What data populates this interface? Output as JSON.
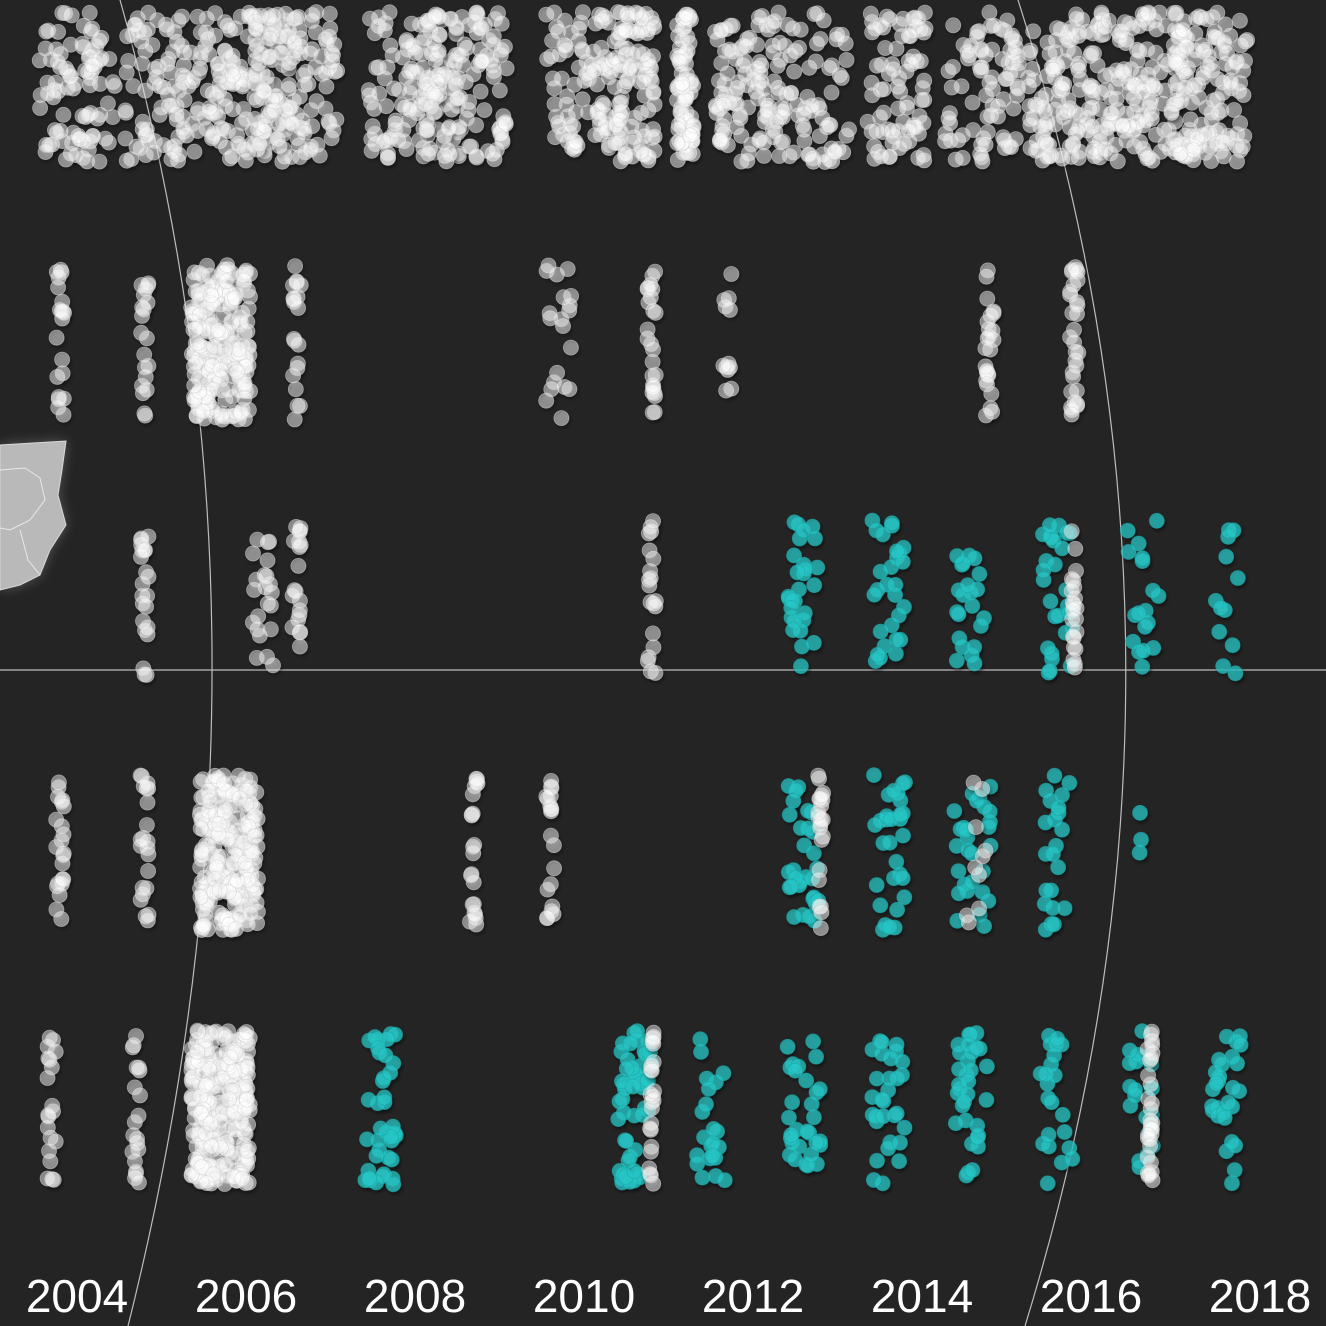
{
  "chart_data": {
    "type": "scatter",
    "subtype": "strip / beeswarm plot of points per year, by row",
    "title": "",
    "xlabel": "",
    "ylabel": "",
    "xlim": [
      2003.5,
      2018.5
    ],
    "x_ticks": [
      "2004",
      "2006",
      "2008",
      "2010",
      "2012",
      "2014",
      "2016",
      "2018"
    ],
    "grid": false,
    "legend": "none",
    "background": "#242424",
    "series_colors": {
      "grey": "#ffffff",
      "teal": "#26c6c6"
    },
    "rows": [
      {
        "row": 1,
        "strips": [
          {
            "x": 2004.0,
            "color": "grey",
            "n": 90,
            "spread": 0.45
          },
          {
            "x": 2005.0,
            "color": "grey",
            "n": 90,
            "spread": 0.45
          },
          {
            "x": 2006.0,
            "color": "grey",
            "n": 150,
            "spread": 0.55
          },
          {
            "x": 2006.6,
            "color": "grey",
            "n": 110,
            "spread": 0.5
          },
          {
            "x": 2008.0,
            "color": "grey",
            "n": 120,
            "spread": 0.55
          },
          {
            "x": 2008.6,
            "color": "grey",
            "n": 110,
            "spread": 0.5
          },
          {
            "x": 2010.0,
            "color": "grey",
            "n": 100,
            "spread": 0.45
          },
          {
            "x": 2010.6,
            "color": "grey",
            "n": 90,
            "spread": 0.25
          },
          {
            "x": 2011.2,
            "color": "grey",
            "n": 80,
            "spread": 0.1
          },
          {
            "x": 2011.9,
            "color": "grey",
            "n": 90,
            "spread": 0.35
          },
          {
            "x": 2012.7,
            "color": "grey",
            "n": 80,
            "spread": 0.45
          },
          {
            "x": 2013.7,
            "color": "grey",
            "n": 80,
            "spread": 0.35
          },
          {
            "x": 2014.7,
            "color": "grey",
            "n": 80,
            "spread": 0.45
          },
          {
            "x": 2015.7,
            "color": "grey",
            "n": 130,
            "spread": 0.45
          },
          {
            "x": 2016.6,
            "color": "grey",
            "n": 120,
            "spread": 0.45
          },
          {
            "x": 2017.4,
            "color": "grey",
            "n": 140,
            "spread": 0.45
          }
        ]
      },
      {
        "row": 2,
        "strips": [
          {
            "x": 2003.8,
            "color": "grey",
            "n": 20,
            "spread": 0.05
          },
          {
            "x": 2004.8,
            "color": "grey",
            "n": 20,
            "spread": 0.05
          },
          {
            "x": 2005.7,
            "color": "grey",
            "n": 220,
            "spread": 0.35
          },
          {
            "x": 2006.6,
            "color": "grey",
            "n": 20,
            "spread": 0.05
          },
          {
            "x": 2009.7,
            "color": "grey",
            "n": 20,
            "spread": 0.15
          },
          {
            "x": 2010.8,
            "color": "grey",
            "n": 25,
            "spread": 0.05
          },
          {
            "x": 2011.7,
            "color": "grey",
            "n": 12,
            "spread": 0.05
          },
          {
            "x": 2014.8,
            "color": "grey",
            "n": 25,
            "spread": 0.05
          },
          {
            "x": 2015.8,
            "color": "grey",
            "n": 30,
            "spread": 0.05
          }
        ]
      },
      {
        "row": 3,
        "strips": [
          {
            "x": 2004.8,
            "color": "grey",
            "n": 22,
            "spread": 0.05
          },
          {
            "x": 2006.2,
            "color": "grey",
            "n": 22,
            "spread": 0.12
          },
          {
            "x": 2006.6,
            "color": "grey",
            "n": 20,
            "spread": 0.05
          },
          {
            "x": 2010.8,
            "color": "grey",
            "n": 20,
            "spread": 0.05
          },
          {
            "x": 2012.6,
            "color": "teal",
            "n": 28,
            "spread": 0.18
          },
          {
            "x": 2013.6,
            "color": "teal",
            "n": 28,
            "spread": 0.2
          },
          {
            "x": 2014.6,
            "color": "teal",
            "n": 22,
            "spread": 0.2
          },
          {
            "x": 2015.6,
            "color": "teal",
            "n": 28,
            "spread": 0.2
          },
          {
            "x": 2015.8,
            "color": "grey",
            "n": 22,
            "spread": 0.03
          },
          {
            "x": 2016.6,
            "color": "teal",
            "n": 18,
            "spread": 0.2
          },
          {
            "x": 2017.6,
            "color": "teal",
            "n": 12,
            "spread": 0.15
          }
        ]
      },
      {
        "row": 4,
        "strips": [
          {
            "x": 2003.8,
            "color": "grey",
            "n": 22,
            "spread": 0.05
          },
          {
            "x": 2004.8,
            "color": "grey",
            "n": 22,
            "spread": 0.05
          },
          {
            "x": 2005.8,
            "color": "grey",
            "n": 240,
            "spread": 0.35
          },
          {
            "x": 2008.7,
            "color": "grey",
            "n": 22,
            "spread": 0.05
          },
          {
            "x": 2009.6,
            "color": "grey",
            "n": 20,
            "spread": 0.05
          },
          {
            "x": 2012.6,
            "color": "teal",
            "n": 30,
            "spread": 0.18
          },
          {
            "x": 2012.8,
            "color": "grey",
            "n": 22,
            "spread": 0.03
          },
          {
            "x": 2013.6,
            "color": "teal",
            "n": 30,
            "spread": 0.2
          },
          {
            "x": 2014.6,
            "color": "teal",
            "n": 28,
            "spread": 0.22
          },
          {
            "x": 2014.7,
            "color": "grey",
            "n": 10,
            "spread": 0.2
          },
          {
            "x": 2015.6,
            "color": "teal",
            "n": 22,
            "spread": 0.15
          },
          {
            "x": 2016.6,
            "color": "teal",
            "n": 3,
            "spread": 0.03
          }
        ]
      },
      {
        "row": 5,
        "strips": [
          {
            "x": 2003.7,
            "color": "grey",
            "n": 20,
            "spread": 0.05
          },
          {
            "x": 2004.7,
            "color": "grey",
            "n": 20,
            "spread": 0.05
          },
          {
            "x": 2005.7,
            "color": "grey",
            "n": 260,
            "spread": 0.35
          },
          {
            "x": 2007.6,
            "color": "teal",
            "n": 40,
            "spread": 0.2
          },
          {
            "x": 2010.6,
            "color": "teal",
            "n": 50,
            "spread": 0.2
          },
          {
            "x": 2010.8,
            "color": "grey",
            "n": 24,
            "spread": 0.03
          },
          {
            "x": 2011.5,
            "color": "teal",
            "n": 22,
            "spread": 0.2
          },
          {
            "x": 2012.6,
            "color": "teal",
            "n": 30,
            "spread": 0.2
          },
          {
            "x": 2013.6,
            "color": "teal",
            "n": 30,
            "spread": 0.2
          },
          {
            "x": 2014.6,
            "color": "teal",
            "n": 32,
            "spread": 0.2
          },
          {
            "x": 2015.6,
            "color": "teal",
            "n": 22,
            "spread": 0.2
          },
          {
            "x": 2016.6,
            "color": "teal",
            "n": 22,
            "spread": 0.15
          },
          {
            "x": 2016.7,
            "color": "grey",
            "n": 30,
            "spread": 0.03
          },
          {
            "x": 2017.6,
            "color": "teal",
            "n": 28,
            "spread": 0.18
          }
        ]
      }
    ]
  }
}
